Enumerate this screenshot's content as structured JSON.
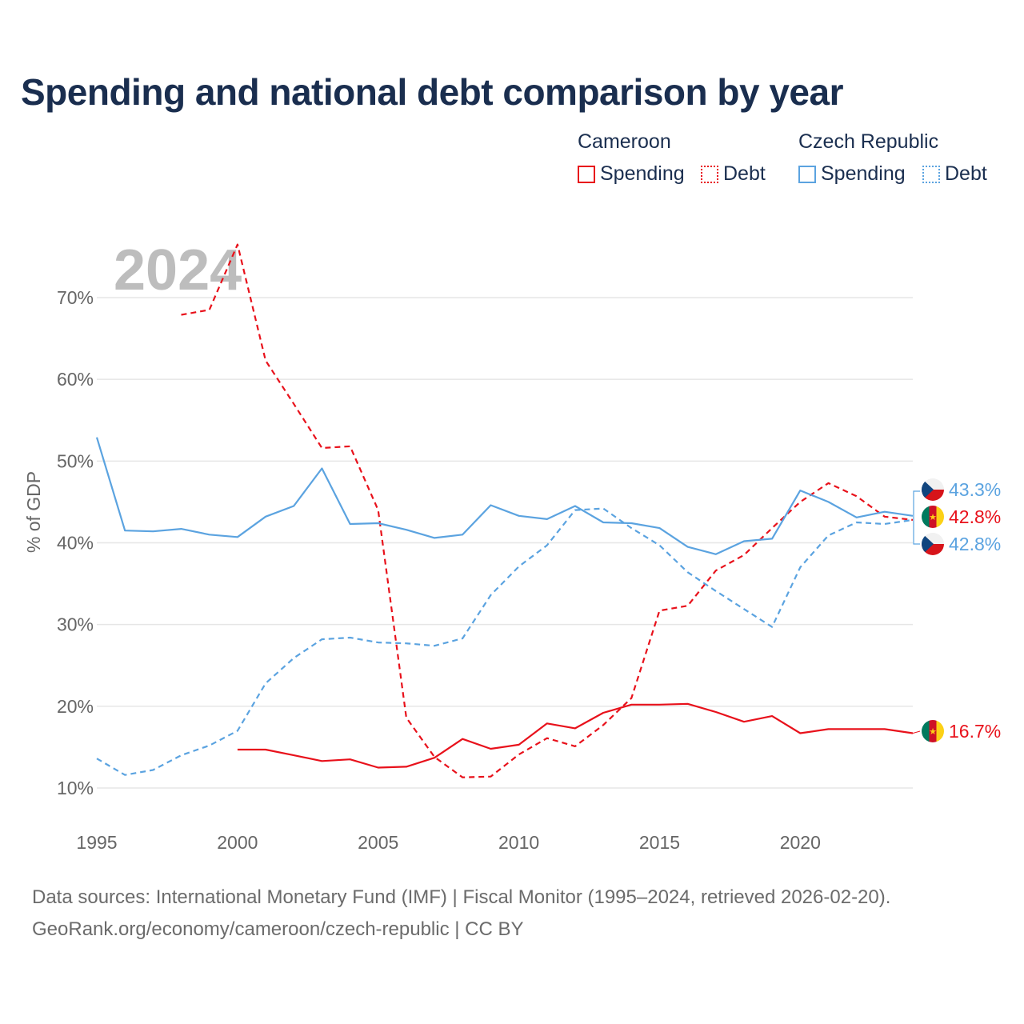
{
  "title": "Spending and national debt comparison by year",
  "legend": {
    "cameroon": {
      "name": "Cameroon",
      "spending": "Spending",
      "debt": "Debt"
    },
    "czech": {
      "name": "Czech Republic",
      "spending": "Spending",
      "debt": "Debt"
    }
  },
  "year_watermark": "2024",
  "colors": {
    "cameroon": "#e8111b",
    "czech": "#5ba3e0",
    "grid": "#e6e6e6",
    "axis_text": "#666666",
    "watermark": "#bdbdbd"
  },
  "chart_data": {
    "type": "line",
    "ylabel": "% of GDP",
    "xlabel": "",
    "ylim": [
      5,
      77
    ],
    "xlim": [
      1995,
      2024
    ],
    "x_ticks": [
      "1995",
      "2000",
      "2005",
      "2010",
      "2015",
      "2020"
    ],
    "y_ticks": [
      "10%",
      "20%",
      "30%",
      "40%",
      "50%",
      "60%",
      "70%"
    ],
    "y_tick_values": [
      10,
      20,
      30,
      40,
      50,
      60,
      70
    ],
    "series": [
      {
        "name": "Cameroon Spending",
        "country": "cameroon",
        "style": "solid",
        "x": [
          2000,
          2001,
          2002,
          2003,
          2004,
          2005,
          2006,
          2007,
          2008,
          2009,
          2010,
          2011,
          2012,
          2013,
          2014,
          2015,
          2016,
          2017,
          2018,
          2019,
          2020,
          2021,
          2022,
          2023,
          2024
        ],
        "values": [
          14.7,
          14.7,
          14.0,
          13.3,
          13.5,
          12.5,
          12.6,
          13.7,
          16.0,
          14.8,
          15.3,
          17.9,
          17.3,
          19.2,
          20.2,
          20.2,
          20.3,
          19.3,
          18.1,
          18.8,
          16.7,
          17.2,
          17.2,
          17.2,
          16.7
        ]
      },
      {
        "name": "Cameroon Debt",
        "country": "cameroon",
        "style": "dashed",
        "x": [
          1998,
          1999,
          2000,
          2001,
          2002,
          2003,
          2004,
          2005,
          2006,
          2007,
          2008,
          2009,
          2010,
          2011,
          2012,
          2013,
          2014,
          2015,
          2016,
          2017,
          2018,
          2019,
          2020,
          2021,
          2022,
          2023,
          2024
        ],
        "values": [
          67.9,
          68.5,
          76.5,
          62.3,
          57.0,
          51.6,
          51.8,
          44.0,
          18.6,
          13.8,
          11.3,
          11.4,
          14.1,
          16.1,
          15.1,
          17.7,
          21.0,
          31.7,
          32.3,
          36.6,
          38.5,
          41.8,
          45.0,
          47.3,
          45.7,
          43.2,
          42.8
        ]
      },
      {
        "name": "Czech Republic Spending",
        "country": "czech",
        "style": "solid",
        "x": [
          1995,
          1996,
          1997,
          1998,
          1999,
          2000,
          2001,
          2002,
          2003,
          2004,
          2005,
          2006,
          2007,
          2008,
          2009,
          2010,
          2011,
          2012,
          2013,
          2014,
          2015,
          2016,
          2017,
          2018,
          2019,
          2020,
          2021,
          2022,
          2023,
          2024
        ],
        "values": [
          52.9,
          41.5,
          41.4,
          41.7,
          41.0,
          40.7,
          43.2,
          44.5,
          49.1,
          42.3,
          42.4,
          41.6,
          40.6,
          41.0,
          44.6,
          43.3,
          42.9,
          44.5,
          42.5,
          42.4,
          41.8,
          39.5,
          38.6,
          40.2,
          40.5,
          46.4,
          45.0,
          43.1,
          43.8,
          43.3
        ]
      },
      {
        "name": "Czech Republic Debt",
        "country": "czech",
        "style": "dashed",
        "x": [
          1995,
          1996,
          1997,
          1998,
          1999,
          2000,
          2001,
          2002,
          2003,
          2004,
          2005,
          2006,
          2007,
          2008,
          2009,
          2010,
          2011,
          2012,
          2013,
          2014,
          2015,
          2016,
          2017,
          2018,
          2019,
          2020,
          2021,
          2022,
          2023,
          2024
        ],
        "values": [
          13.6,
          11.6,
          12.2,
          14.0,
          15.2,
          17.0,
          22.8,
          25.9,
          28.2,
          28.4,
          27.8,
          27.7,
          27.4,
          28.3,
          33.6,
          37.1,
          39.7,
          44.0,
          44.2,
          41.8,
          39.7,
          36.4,
          34.1,
          31.9,
          29.7,
          37.0,
          40.9,
          42.5,
          42.3,
          42.8
        ]
      }
    ],
    "end_labels": [
      {
        "text": "43.3%",
        "country": "czech",
        "series": "Czech Republic Spending",
        "value": 43.3
      },
      {
        "text": "42.8%",
        "country": "cameroon",
        "series": "Cameroon Debt",
        "value": 42.8
      },
      {
        "text": "42.8%",
        "country": "czech",
        "series": "Czech Republic Debt",
        "value": 42.8
      },
      {
        "text": "16.7%",
        "country": "cameroon",
        "series": "Cameroon Spending",
        "value": 16.7
      }
    ]
  },
  "footer": {
    "line1": "Data sources: International Monetary Fund (IMF) | Fiscal Monitor (1995–2024, retrieved 2026-02-20).",
    "line2": "GeoRank.org/economy/cameroon/czech-republic | CC BY"
  }
}
